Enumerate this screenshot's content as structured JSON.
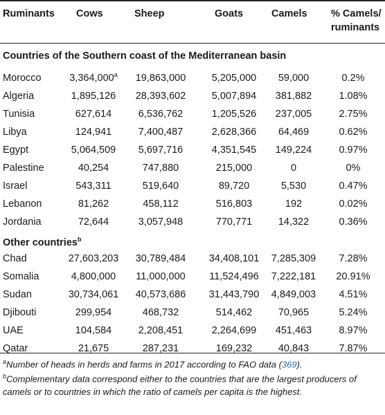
{
  "header": {
    "ruminants": "Ruminants",
    "cows": "Cows",
    "sheep": "Sheep",
    "goats": "Goats",
    "camels": "Camels",
    "pct_line1": "% Camels/",
    "pct_line2": "ruminants"
  },
  "section1": {
    "title": "Countries of the Southern coast of the Mediterranean basin",
    "rows": [
      {
        "country": "Morocco",
        "cows": "3,364,000",
        "cows_note": "a",
        "sheep": "19,863,000",
        "goats": "5,205,000",
        "camels": "59,000",
        "pct": "0.2%"
      },
      {
        "country": "Algeria",
        "cows": "1,895,126",
        "sheep": "28,393,602",
        "goats": "5,007,894",
        "camels": "381,882",
        "pct": "1.08%"
      },
      {
        "country": "Tunisia",
        "cows": "627,614",
        "sheep": "6,536,762",
        "goats": "1,205,526",
        "camels": "237,005",
        "pct": "2.75%"
      },
      {
        "country": "Libya",
        "cows": "124,941",
        "sheep": "7,400,487",
        "goats": "2,628,366",
        "camels": "64,469",
        "pct": "0.62%"
      },
      {
        "country": "Egypt",
        "cows": "5,064,509",
        "sheep": "5,697,716",
        "goats": "4,351,545",
        "camels": "149,224",
        "pct": "0.97%"
      },
      {
        "country": "Palestine",
        "cows": "40,254",
        "sheep": "747,880",
        "goats": "215,000",
        "camels": "0",
        "pct": "0%"
      },
      {
        "country": "Israel",
        "cows": "543,311",
        "sheep": "519,640",
        "goats": "89,720",
        "camels": "5,530",
        "pct": "0.47%"
      },
      {
        "country": "Lebanon",
        "cows": "81,262",
        "sheep": "458,112",
        "goats": "516,803",
        "camels": "192",
        "pct": "0.02%"
      },
      {
        "country": "Jordania",
        "cows": "72,644",
        "sheep": "3,057,948",
        "goats": "770,771",
        "camels": "14,322",
        "pct": "0.36%"
      }
    ]
  },
  "section2": {
    "title": "Other countries",
    "title_note": "b",
    "rows": [
      {
        "country": "Chad",
        "cows": "27,603,203",
        "sheep": "30,789,484",
        "goats": "34,408,101",
        "camels": "7,285,309",
        "pct": "7.28%"
      },
      {
        "country": "Somalia",
        "cows": "4,800,000",
        "sheep": "11,000,000",
        "goats": "11,524,496",
        "camels": "7,222,181",
        "pct": "20.91%"
      },
      {
        "country": "Sudan",
        "cows": "30,734,061",
        "sheep": "40,573,686",
        "goats": "31,443,790",
        "camels": "4,849,003",
        "pct": "4.51%"
      },
      {
        "country": "Djibouti",
        "cows": "299,954",
        "sheep": "468,732",
        "goats": "514,462",
        "camels": "70,965",
        "pct": "5.24%"
      },
      {
        "country": "UAE",
        "cows": "104,584",
        "sheep": "2,208,451",
        "goats": "2,264,699",
        "camels": "451,463",
        "pct": "8.97%"
      },
      {
        "country": "Qatar",
        "cows": "21,675",
        "sheep": "287,231",
        "goats": "169,232",
        "camels": "40,843",
        "pct": "7.87%"
      }
    ]
  },
  "footnotes": {
    "a_mark": "a",
    "a_text": "Number of heads in herds and farms in 2017 according to FAO data (",
    "a_ref": "369",
    "a_end": ").",
    "b_mark": "b",
    "b_text": "Complementary data correspond either to the countries that are the largest producers of camels or to countries in which the ratio of camels per capita is the highest."
  }
}
